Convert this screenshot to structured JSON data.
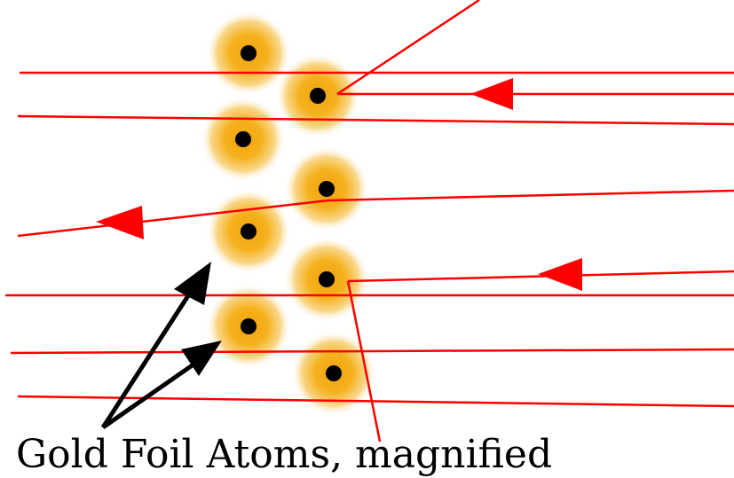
{
  "caption": "Gold Foil Atoms, magnified",
  "top_text": "",
  "colors": {
    "ray": "#ff0000",
    "arrowhead": "#ff0000",
    "pointer": "#000000",
    "atom_core": "#000000",
    "atom_glow_inner": "#f5b21f",
    "atom_glow_outer": "#ffffff"
  },
  "atoms": [
    {
      "id": "atom-1"
    },
    {
      "id": "atom-2"
    },
    {
      "id": "atom-3"
    },
    {
      "id": "atom-4"
    },
    {
      "id": "atom-5"
    },
    {
      "id": "atom-6"
    },
    {
      "id": "atom-7"
    },
    {
      "id": "atom-8"
    }
  ],
  "rays": [
    {
      "id": "ray-1",
      "behavior": "passes straight through"
    },
    {
      "id": "ray-2",
      "behavior": "reflected back from atom"
    },
    {
      "id": "ray-3",
      "behavior": "passes straight through"
    },
    {
      "id": "ray-4",
      "behavior": "deflected by atom"
    },
    {
      "id": "ray-5",
      "behavior": "passes straight through"
    },
    {
      "id": "ray-6",
      "behavior": "deflected by atom"
    },
    {
      "id": "ray-7",
      "behavior": "passes straight through"
    },
    {
      "id": "ray-8",
      "behavior": "passes straight through"
    }
  ]
}
